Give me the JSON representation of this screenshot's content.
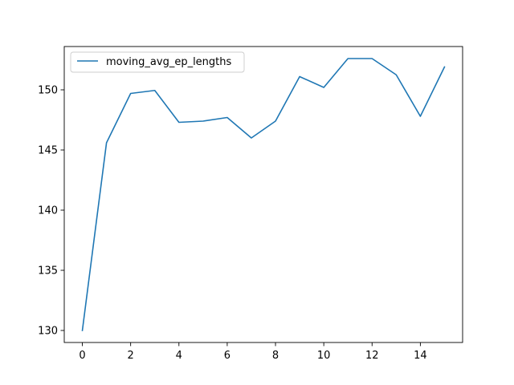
{
  "chart_data": {
    "type": "line",
    "title": "",
    "xlabel": "",
    "ylabel": "",
    "xlim": [
      -0.75,
      15.75
    ],
    "ylim": [
      129.0,
      153.6
    ],
    "xticks": [
      0,
      2,
      4,
      6,
      8,
      10,
      12,
      14
    ],
    "yticks": [
      130,
      135,
      140,
      145,
      150
    ],
    "grid": false,
    "legend": {
      "placement": "top-left",
      "entries": [
        "moving_avg_ep_lengths"
      ]
    },
    "series": [
      {
        "name": "moving_avg_ep_lengths",
        "color": "#1f77b4",
        "x": [
          0,
          1,
          2,
          3,
          4,
          5,
          6,
          7,
          8,
          9,
          10,
          11,
          12,
          13,
          14,
          15
        ],
        "y": [
          130.0,
          145.6,
          149.7,
          149.95,
          147.3,
          147.4,
          147.7,
          146.0,
          147.4,
          151.1,
          150.2,
          152.6,
          152.6,
          151.25,
          147.8,
          151.9
        ]
      }
    ]
  }
}
